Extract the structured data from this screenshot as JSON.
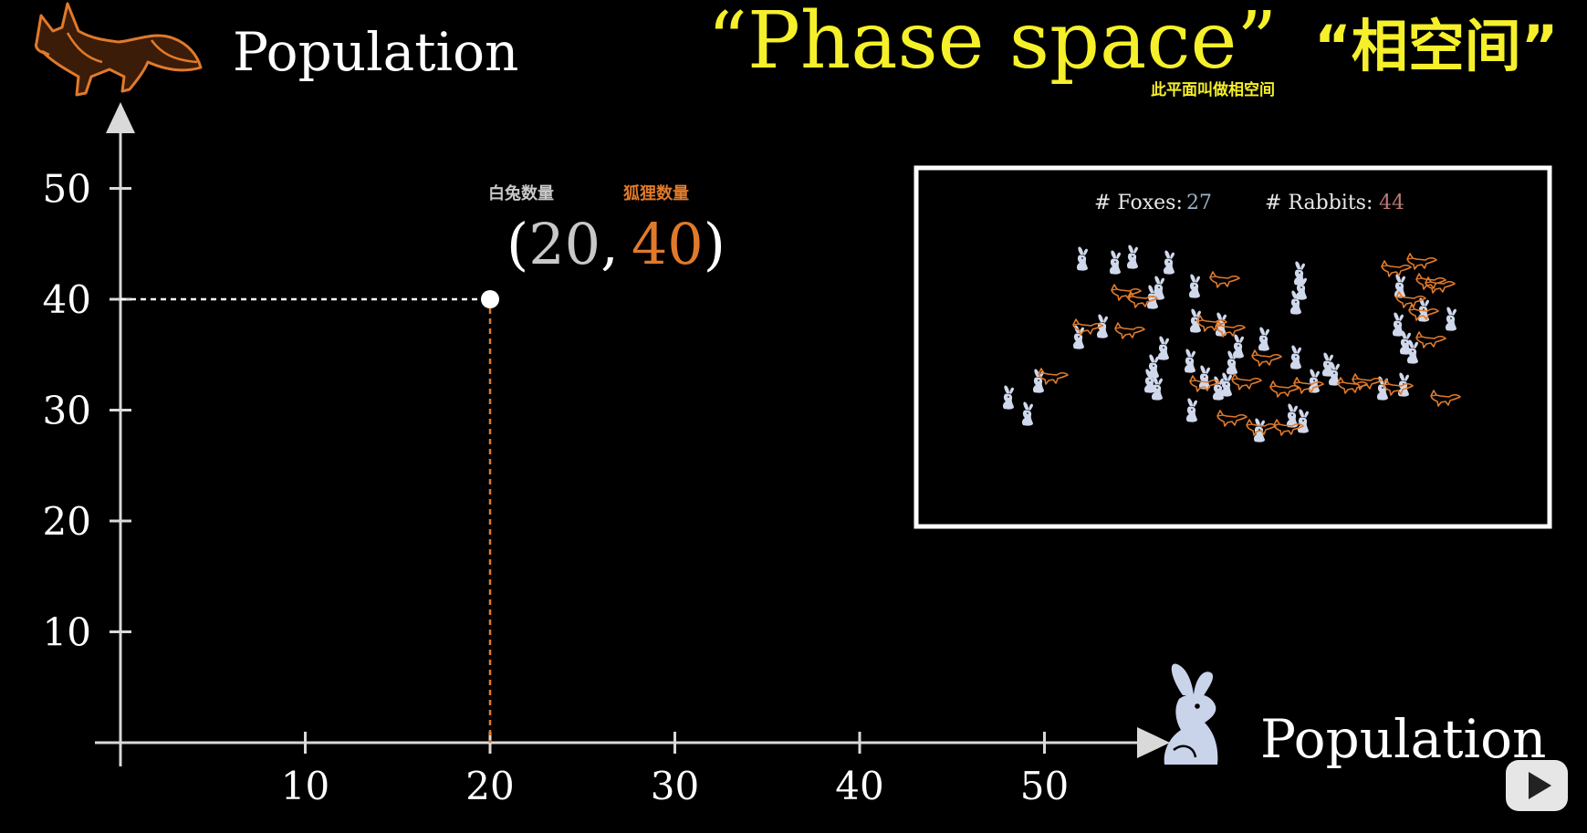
{
  "axes": {
    "y_axis_label": "Population",
    "x_axis_label": "Population",
    "y_axis_icon": "fox-icon",
    "x_axis_icon": "rabbit-icon",
    "x_ticks": [
      "10",
      "20",
      "30",
      "40",
      "50"
    ],
    "y_ticks": [
      "10",
      "20",
      "30",
      "40",
      "50"
    ]
  },
  "point": {
    "x": 20,
    "y": 40,
    "open_paren": "(",
    "x_label": "20",
    "comma": ",",
    "y_label": "40",
    "close_paren": ")",
    "x_caption": "白兔数量",
    "y_caption": "狐狸数量"
  },
  "title": {
    "english": "“Phase space”",
    "chinese": "“相空间”",
    "subtitle": "此平面叫做相空间"
  },
  "inset": {
    "foxes_label": "# Foxes:",
    "foxes_value": "27",
    "rabbits_label": "# Rabbits:",
    "rabbits_value": "44"
  },
  "player": {
    "logo": "play-logo-icon"
  },
  "colors": {
    "fox": "#e07a2b",
    "rabbit": "#d0d8ec",
    "axis": "#d9d9d9",
    "title": "#f5f02a",
    "subtitle": "#f5f02a",
    "fox_count": "#9bb4c9",
    "rabbit_count": "#c07a7a"
  }
}
